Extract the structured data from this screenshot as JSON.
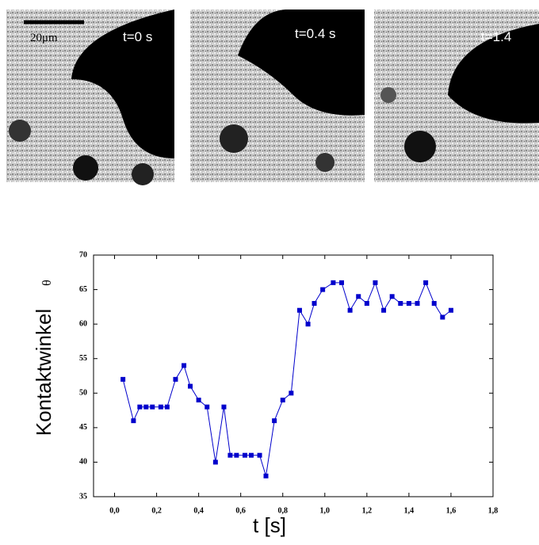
{
  "panels": [
    {
      "label": "t=0 s",
      "scale_label": "20μm"
    },
    {
      "label": "t=0.4 s"
    },
    {
      "label": "t=1.4"
    }
  ],
  "chart_data": {
    "type": "line",
    "ylabel": "Kontaktwinkel",
    "ylabel_symbol": "θ",
    "xlabel": "t [s]",
    "x": [
      0.04,
      0.09,
      0.12,
      0.15,
      0.18,
      0.22,
      0.25,
      0.29,
      0.33,
      0.36,
      0.4,
      0.44,
      0.48,
      0.52,
      0.55,
      0.58,
      0.62,
      0.65,
      0.69,
      0.72,
      0.76,
      0.8,
      0.84,
      0.88,
      0.92,
      0.95,
      0.99,
      1.04,
      1.08,
      1.12,
      1.16,
      1.2,
      1.24,
      1.28,
      1.32,
      1.36,
      1.4,
      1.44,
      1.48,
      1.52,
      1.56,
      1.6
    ],
    "series": [
      {
        "color": "#0000cc",
        "values": [
          52,
          46,
          48,
          48,
          48,
          48,
          48,
          52,
          54,
          51,
          49,
          48,
          40,
          48,
          41,
          41,
          41,
          41,
          41,
          38,
          46,
          49,
          50,
          62,
          60,
          63,
          65,
          66,
          66,
          62,
          64,
          63,
          66,
          62,
          64,
          63,
          63,
          63,
          66,
          63,
          61,
          62
        ]
      }
    ],
    "xlim": [
      -0.1,
      1.8
    ],
    "xticks": [
      {
        "value": 0,
        "label": "0,0"
      },
      {
        "value": 0.2,
        "label": "0,2"
      },
      {
        "value": 0.4,
        "label": "0,4"
      },
      {
        "value": 0.6,
        "label": "0,6"
      },
      {
        "value": 0.8,
        "label": "0,8"
      },
      {
        "value": 1.0,
        "label": "1,0"
      },
      {
        "value": 1.2,
        "label": "1,2"
      },
      {
        "value": 1.4,
        "label": "1,4"
      },
      {
        "value": 1.6,
        "label": "1,6"
      },
      {
        "value": 1.8,
        "label": "1,8"
      }
    ],
    "ylim": [
      35,
      70
    ],
    "yticks": [
      35,
      40,
      45,
      50,
      55,
      60,
      65,
      70
    ]
  }
}
